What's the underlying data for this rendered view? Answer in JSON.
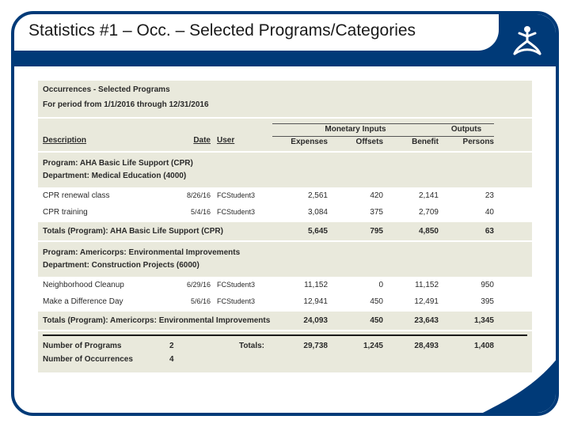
{
  "page": {
    "title": "Statistics #1 – Occ. – Selected Programs/Categories",
    "brand_color": "#003a78",
    "band_color": "#e9e9dc"
  },
  "report": {
    "title": "Occurrences - Selected Programs",
    "period": "For period from 1/1/2016 through 12/31/2016"
  },
  "columns": {
    "group_monetary": "Monetary Inputs",
    "group_outputs": "Outputs",
    "description": "Description",
    "date": "Date",
    "user": "User",
    "expenses": "Expenses",
    "offsets": "Offsets",
    "benefit": "Benefit",
    "persons": "Persons"
  },
  "sections": [
    {
      "program": "Program: AHA Basic Life Support (CPR)",
      "department": "Department: Medical Education (4000)",
      "rows": [
        {
          "desc": "CPR renewal class",
          "date": "8/26/16",
          "user": "FCStudent3",
          "expenses": "2,561",
          "offsets": "420",
          "benefit": "2,141",
          "persons": "23"
        },
        {
          "desc": "CPR training",
          "date": "5/4/16",
          "user": "FCStudent3",
          "expenses": "3,084",
          "offsets": "375",
          "benefit": "2,709",
          "persons": "40"
        }
      ],
      "totals": {
        "label": "Totals (Program): AHA Basic Life Support (CPR)",
        "expenses": "5,645",
        "offsets": "795",
        "benefit": "4,850",
        "persons": "63"
      }
    },
    {
      "program": "Program: Americorps: Environmental Improvements",
      "department": "Department: Construction Projects (6000)",
      "rows": [
        {
          "desc": "Neighborhood Cleanup",
          "date": "6/29/16",
          "user": "FCStudent3",
          "expenses": "11,152",
          "offsets": "0",
          "benefit": "11,152",
          "persons": "950"
        },
        {
          "desc": "Make a Difference Day",
          "date": "5/6/16",
          "user": "FCStudent3",
          "expenses": "12,941",
          "offsets": "450",
          "benefit": "12,491",
          "persons": "395"
        }
      ],
      "totals": {
        "label": "Totals (Program): Americorps: Environmental Improvements",
        "expenses": "24,093",
        "offsets": "450",
        "benefit": "23,643",
        "persons": "1,345"
      }
    }
  ],
  "summary": {
    "programs_label": "Number of Programs",
    "programs_value": "2",
    "occurrences_label": "Number of Occurrences",
    "occurrences_value": "4",
    "totals_label": "Totals:",
    "expenses": "29,738",
    "offsets": "1,245",
    "benefit": "28,493",
    "persons": "1,408"
  }
}
